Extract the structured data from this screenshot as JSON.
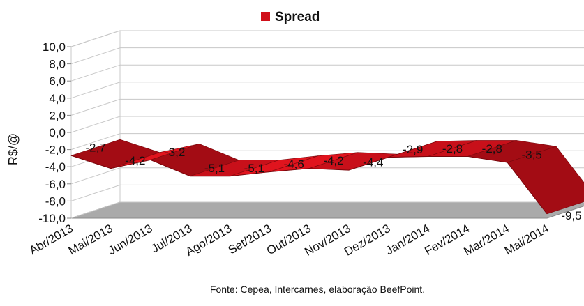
{
  "chart_data": {
    "type": "area",
    "variant": "3d-ribbon",
    "title": "",
    "legend": {
      "position": "top",
      "entries": [
        "Spread"
      ]
    },
    "ylabel": "R$/@",
    "xlabel": "",
    "ylim": [
      -10,
      10
    ],
    "yticks": [
      "10,0",
      "8,0",
      "6,0",
      "4,0",
      "2,0",
      "0,0",
      "-2,0",
      "-4,0",
      "-6,0",
      "-8,0",
      "-10,0"
    ],
    "categories": [
      "Abr/2013",
      "Mai/2013",
      "Jun/2013",
      "Jul/2013",
      "Ago/2013",
      "Set/2013",
      "Out/2013",
      "Nov/2013",
      "Dez/2013",
      "Jan/2014",
      "Fev/2014",
      "Mar/2014",
      "Mai/2014"
    ],
    "series": [
      {
        "name": "Spread",
        "color": "#d0101a",
        "values": [
          -2.7,
          -4.2,
          -3.2,
          -5.1,
          -5.1,
          -4.6,
          -4.2,
          -4.4,
          -2.9,
          -2.8,
          -2.8,
          -3.5,
          -9.5
        ],
        "labels": [
          "-2,7",
          "-4,2",
          "-3,2",
          "-5,1",
          "-5,1",
          "-4,6",
          "-4,2",
          "-4,4",
          "-2,9",
          "-2,8",
          "-2,8",
          "-3,5",
          "-9,5"
        ]
      }
    ],
    "grid": true,
    "source": "Fonte: Cepea, Intercarnes, elaboração BeefPoint."
  }
}
